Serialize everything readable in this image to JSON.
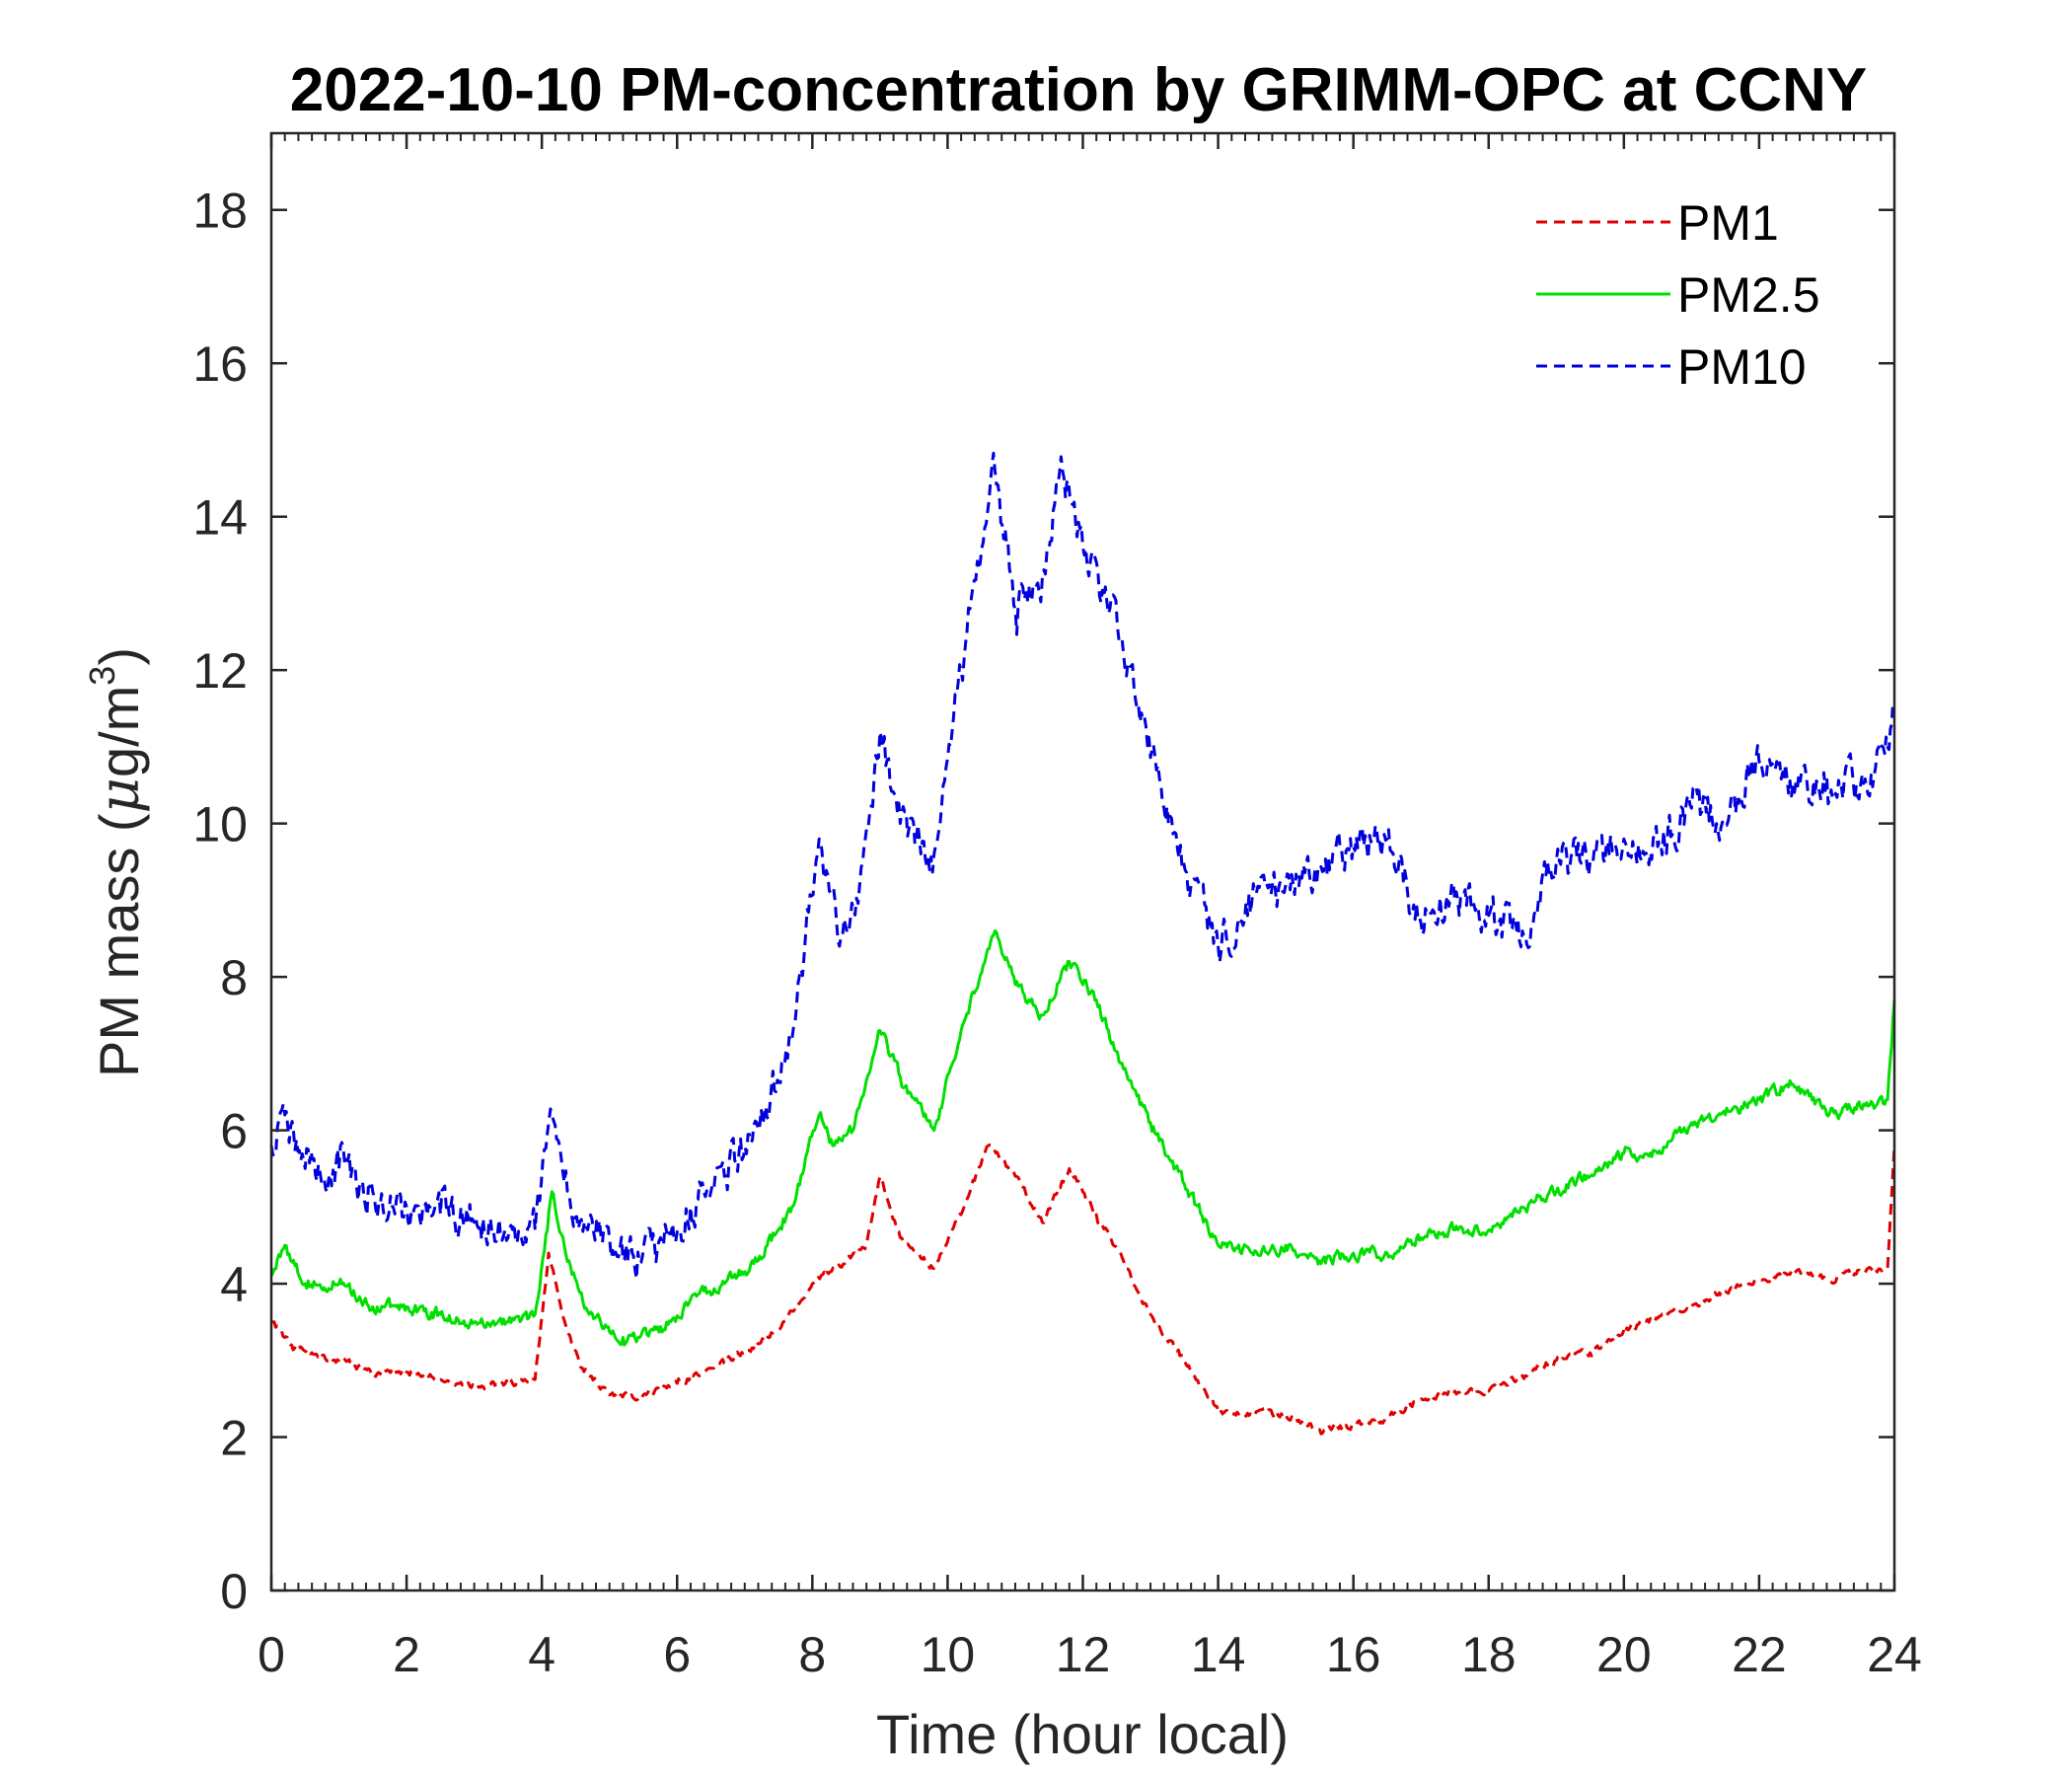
{
  "chart_data": {
    "type": "line",
    "title": "2022-10-10 PM-concentration by GRIMM-OPC at CCNY",
    "xlabel": "Time (hour local)",
    "ylabel": {
      "prefix": "PM mass (",
      "mu": "μ",
      "unit": "g/m",
      "sup": "3",
      "suffix": ")"
    },
    "xlim": [
      0,
      24
    ],
    "ylim": [
      0,
      19
    ],
    "xticks": [
      0,
      2,
      4,
      6,
      8,
      10,
      12,
      14,
      16,
      18,
      20,
      22,
      24
    ],
    "yticks": [
      0,
      2,
      4,
      6,
      8,
      10,
      12,
      14,
      16,
      18
    ],
    "grid": false,
    "legend_position": "top-right",
    "series": [
      {
        "name": "PM1",
        "color": "#e00000",
        "dash": "dashed",
        "x": [
          0,
          0.3,
          0.6,
          1,
          1.5,
          2,
          2.5,
          3,
          3.5,
          3.9,
          4.1,
          4.3,
          4.6,
          5,
          5.5,
          6,
          6.5,
          7,
          7.5,
          8,
          8.5,
          8.8,
          9,
          9.3,
          9.8,
          10.2,
          10.6,
          11,
          11.4,
          11.8,
          12.2,
          12.6,
          13,
          13.5,
          14,
          14.5,
          15,
          15.5,
          16,
          16.5,
          17,
          17.5,
          18,
          18.5,
          19,
          19.5,
          20,
          20.5,
          21,
          21.5,
          22,
          22.5,
          23,
          23.5,
          23.9,
          24
        ],
        "y": [
          3.5,
          3.2,
          3.1,
          3.0,
          2.85,
          2.85,
          2.75,
          2.65,
          2.7,
          2.75,
          4.4,
          3.6,
          2.9,
          2.55,
          2.55,
          2.7,
          2.9,
          3.1,
          3.4,
          4.0,
          4.3,
          4.5,
          5.4,
          4.6,
          4.2,
          4.9,
          5.8,
          5.4,
          4.8,
          5.5,
          4.9,
          4.3,
          3.6,
          3.0,
          2.35,
          2.3,
          2.3,
          2.1,
          2.15,
          2.25,
          2.5,
          2.6,
          2.6,
          2.8,
          3.0,
          3.1,
          3.4,
          3.55,
          3.7,
          3.9,
          4.05,
          4.15,
          4.05,
          4.15,
          4.2,
          5.8
        ]
      },
      {
        "name": "PM2.5",
        "color": "#00e000",
        "dash": "solid",
        "x": [
          0,
          0.2,
          0.5,
          1,
          1.5,
          2,
          2.5,
          3,
          3.5,
          3.9,
          4.15,
          4.4,
          4.7,
          5.2,
          5.8,
          6.2,
          6.7,
          7.2,
          7.7,
          8.1,
          8.3,
          8.6,
          9.0,
          9.3,
          9.8,
          10.2,
          10.7,
          11.0,
          11.4,
          11.8,
          12.2,
          12.6,
          13.0,
          13.5,
          14.0,
          14.5,
          15.0,
          15.5,
          16.0,
          16.5,
          17.0,
          17.5,
          18.0,
          18.5,
          19.0,
          19.5,
          20.0,
          20.5,
          21.0,
          21.5,
          22.0,
          22.5,
          23.0,
          23.5,
          23.9,
          24
        ],
        "y": [
          4.1,
          4.5,
          4.0,
          4.0,
          3.7,
          3.7,
          3.6,
          3.5,
          3.5,
          3.6,
          5.2,
          4.3,
          3.6,
          3.3,
          3.4,
          3.8,
          4.0,
          4.3,
          5.0,
          6.2,
          5.8,
          6.0,
          7.3,
          6.7,
          6.0,
          7.3,
          8.6,
          7.9,
          7.5,
          8.2,
          7.7,
          6.8,
          6.1,
          5.3,
          4.5,
          4.4,
          4.5,
          4.3,
          4.4,
          4.4,
          4.6,
          4.7,
          4.7,
          5.0,
          5.2,
          5.4,
          5.7,
          5.7,
          6.1,
          6.2,
          6.4,
          6.6,
          6.2,
          6.3,
          6.4,
          7.7
        ]
      },
      {
        "name": "PM10",
        "color": "#0000dd",
        "dash": "dashed",
        "x": [
          0,
          0.2,
          0.5,
          1,
          1.5,
          2,
          2.5,
          3,
          3.5,
          3.9,
          4.15,
          4.4,
          4.7,
          5.2,
          5.8,
          6.2,
          6.7,
          7.2,
          7.7,
          8.1,
          8.4,
          8.7,
          9.0,
          9.3,
          9.8,
          10.2,
          10.7,
          11.0,
          11.4,
          11.7,
          12.0,
          12.4,
          12.8,
          13.2,
          13.6,
          14.0,
          14.5,
          15.0,
          15.5,
          16.0,
          16.5,
          17.0,
          17.5,
          18.0,
          18.5,
          19.0,
          19.5,
          20.0,
          20.5,
          21.0,
          21.5,
          22.0,
          22.5,
          23.0,
          23.5,
          23.9,
          24
        ],
        "y": [
          5.8,
          6.2,
          5.5,
          5.5,
          5.2,
          5.0,
          4.9,
          4.8,
          4.6,
          4.7,
          6.2,
          5.2,
          4.8,
          4.3,
          4.5,
          5.0,
          5.4,
          6.0,
          7.2,
          9.8,
          8.4,
          9.2,
          11.2,
          10.0,
          9.6,
          12.0,
          14.6,
          12.8,
          13.2,
          14.6,
          13.6,
          12.8,
          11.5,
          10.2,
          9.2,
          8.4,
          9.0,
          9.2,
          9.4,
          9.7,
          9.8,
          8.7,
          9.0,
          8.8,
          8.6,
          9.5,
          9.5,
          9.8,
          9.7,
          10.2,
          10.0,
          10.8,
          10.5,
          10.6,
          10.5,
          11.0,
          11.6
        ]
      }
    ]
  }
}
